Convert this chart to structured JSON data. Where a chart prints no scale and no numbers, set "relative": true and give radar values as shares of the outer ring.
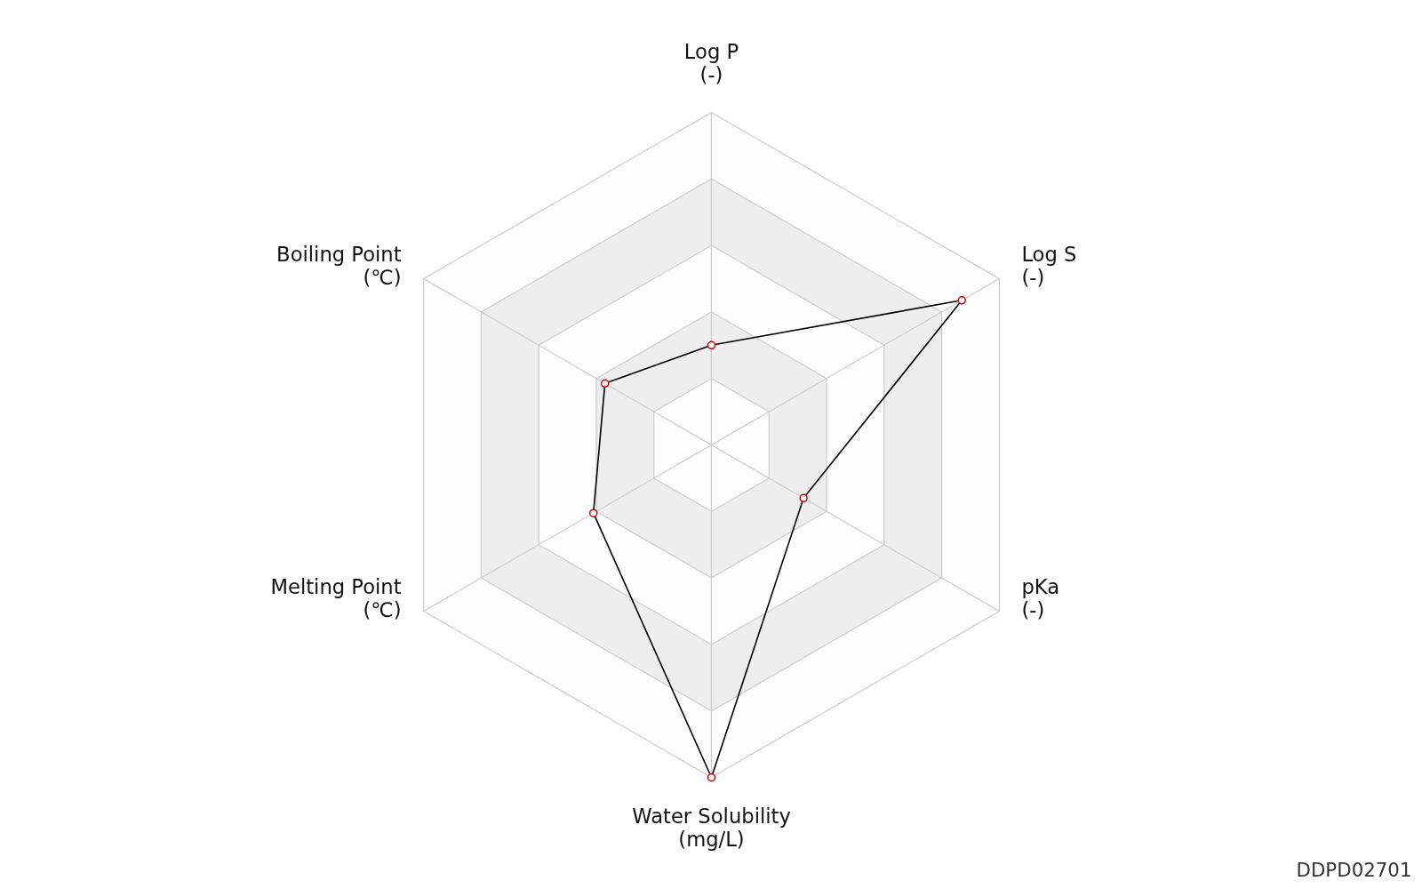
{
  "chart_data": {
    "type": "radar",
    "relative": true,
    "categories": [
      "Log P\n(-)",
      "Log S\n(-)",
      "pKa\n(-)",
      "Water Solubility\n(mg/L)",
      "Melting Point\n(℃)",
      "Boiling Point\n(℃)"
    ],
    "series": [
      {
        "color": "#000000",
        "values": [
          0.3,
          0.87,
          0.32,
          1.0,
          0.41,
          0.37
        ]
      }
    ],
    "marker": "circle",
    "annotations": [
      "DDPD02701"
    ]
  }
}
